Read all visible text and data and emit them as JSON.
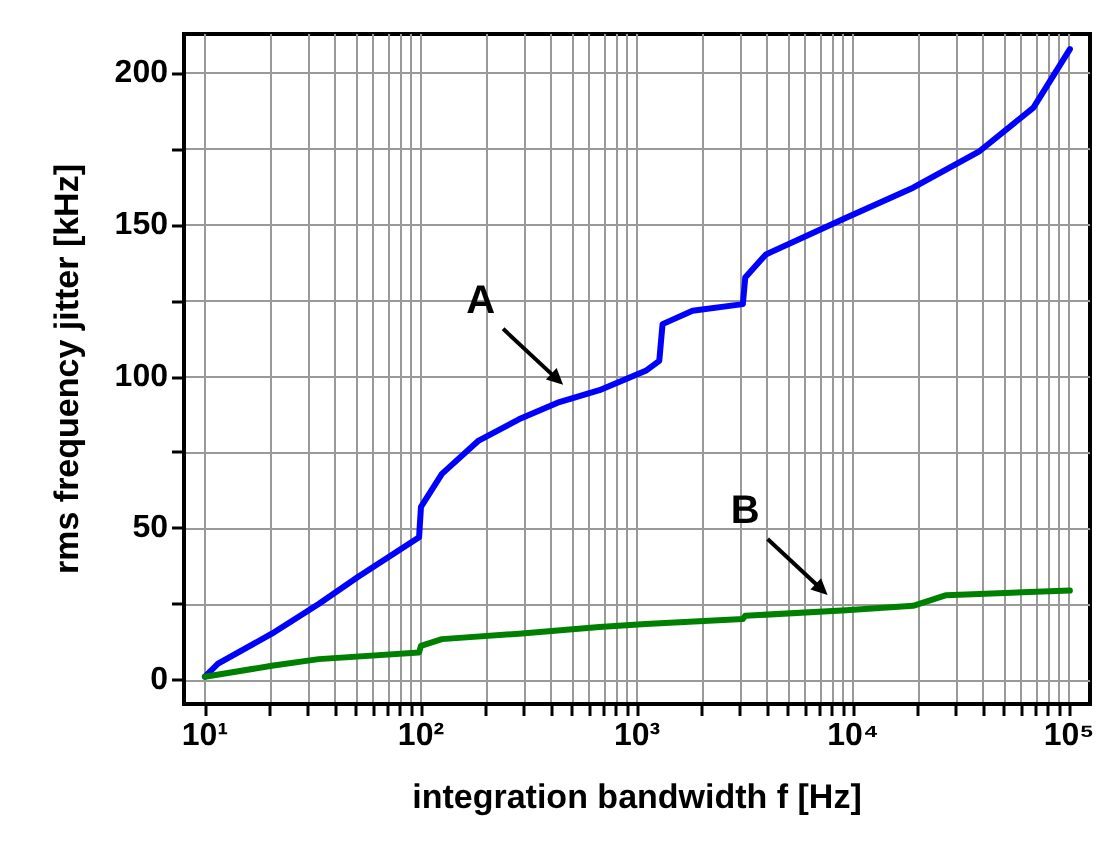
{
  "chart_data": {
    "type": "line",
    "xlabel": "integration bandwidth f [Hz]",
    "ylabel": "rms frequency jitter [kHz]",
    "log": "x",
    "grid": true,
    "marker": "none",
    "line_style": "solid",
    "xlim": [
      8,
      125000
    ],
    "ylim": [
      -8,
      213
    ],
    "xticks": [
      {
        "value": 10,
        "label": "10¹"
      },
      {
        "value": 20,
        "label": null
      },
      {
        "value": 30,
        "label": null
      },
      {
        "value": 40,
        "label": null
      },
      {
        "value": 50,
        "label": null
      },
      {
        "value": 60,
        "label": null
      },
      {
        "value": 70,
        "label": null
      },
      {
        "value": 80,
        "label": null
      },
      {
        "value": 90,
        "label": null
      },
      {
        "value": 100,
        "label": "10²"
      },
      {
        "value": 200,
        "label": null
      },
      {
        "value": 300,
        "label": null
      },
      {
        "value": 400,
        "label": null
      },
      {
        "value": 500,
        "label": null
      },
      {
        "value": 600,
        "label": null
      },
      {
        "value": 700,
        "label": null
      },
      {
        "value": 800,
        "label": null
      },
      {
        "value": 900,
        "label": null
      },
      {
        "value": 1000,
        "label": "10³"
      },
      {
        "value": 2000,
        "label": null
      },
      {
        "value": 3000,
        "label": null
      },
      {
        "value": 4000,
        "label": null
      },
      {
        "value": 5000,
        "label": null
      },
      {
        "value": 6000,
        "label": null
      },
      {
        "value": 7000,
        "label": null
      },
      {
        "value": 8000,
        "label": null
      },
      {
        "value": 9000,
        "label": null
      },
      {
        "value": 10000,
        "label": "10⁴"
      },
      {
        "value": 20000,
        "label": null
      },
      {
        "value": 30000,
        "label": null
      },
      {
        "value": 40000,
        "label": null
      },
      {
        "value": 50000,
        "label": null
      },
      {
        "value": 60000,
        "label": null
      },
      {
        "value": 70000,
        "label": null
      },
      {
        "value": 80000,
        "label": null
      },
      {
        "value": 90000,
        "label": null
      },
      {
        "value": 100000,
        "label": "10⁵"
      }
    ],
    "yticks": [
      0,
      {
        "value": 25,
        "label": null
      },
      50,
      {
        "value": 75,
        "label": null
      },
      100,
      {
        "value": 125,
        "label": null
      },
      150,
      {
        "value": 175,
        "label": null
      },
      200
    ],
    "series": [
      {
        "color": "#0000ff",
        "x": [
          10,
          11.5,
          20.4,
          33.6,
          51,
          98,
          100,
          125,
          185,
          284,
          437,
          670,
          1097,
          1268,
          1313,
          1807,
          3090,
          3170,
          3950,
          9290,
          18970,
          38600,
          68400,
          100900
        ],
        "values": [
          1,
          5.3,
          15.2,
          25,
          33.9,
          47,
          57,
          67.9,
          78.9,
          85.9,
          91.6,
          95.5,
          101.9,
          105.2,
          117.3,
          121.7,
          123.9,
          132.7,
          140.3,
          152.4,
          162.3,
          174.4,
          188.7,
          208
        ]
      },
      {
        "color": "#008000",
        "x": [
          10,
          20.4,
          33.6,
          98,
          100,
          125,
          284,
          670,
          1097,
          3090,
          3170,
          9290,
          18970,
          27000,
          100900
        ],
        "values": [
          1,
          4.6,
          6.8,
          9,
          11.2,
          13.4,
          15.2,
          17.4,
          18.4,
          20,
          21.1,
          22.9,
          24.4,
          27.9,
          29.4
        ]
      }
    ],
    "annotations": [
      {
        "text": "A",
        "x": 485,
        "y": 92
      },
      {
        "text": "B",
        "x": 8130,
        "y": 22.7
      }
    ]
  }
}
